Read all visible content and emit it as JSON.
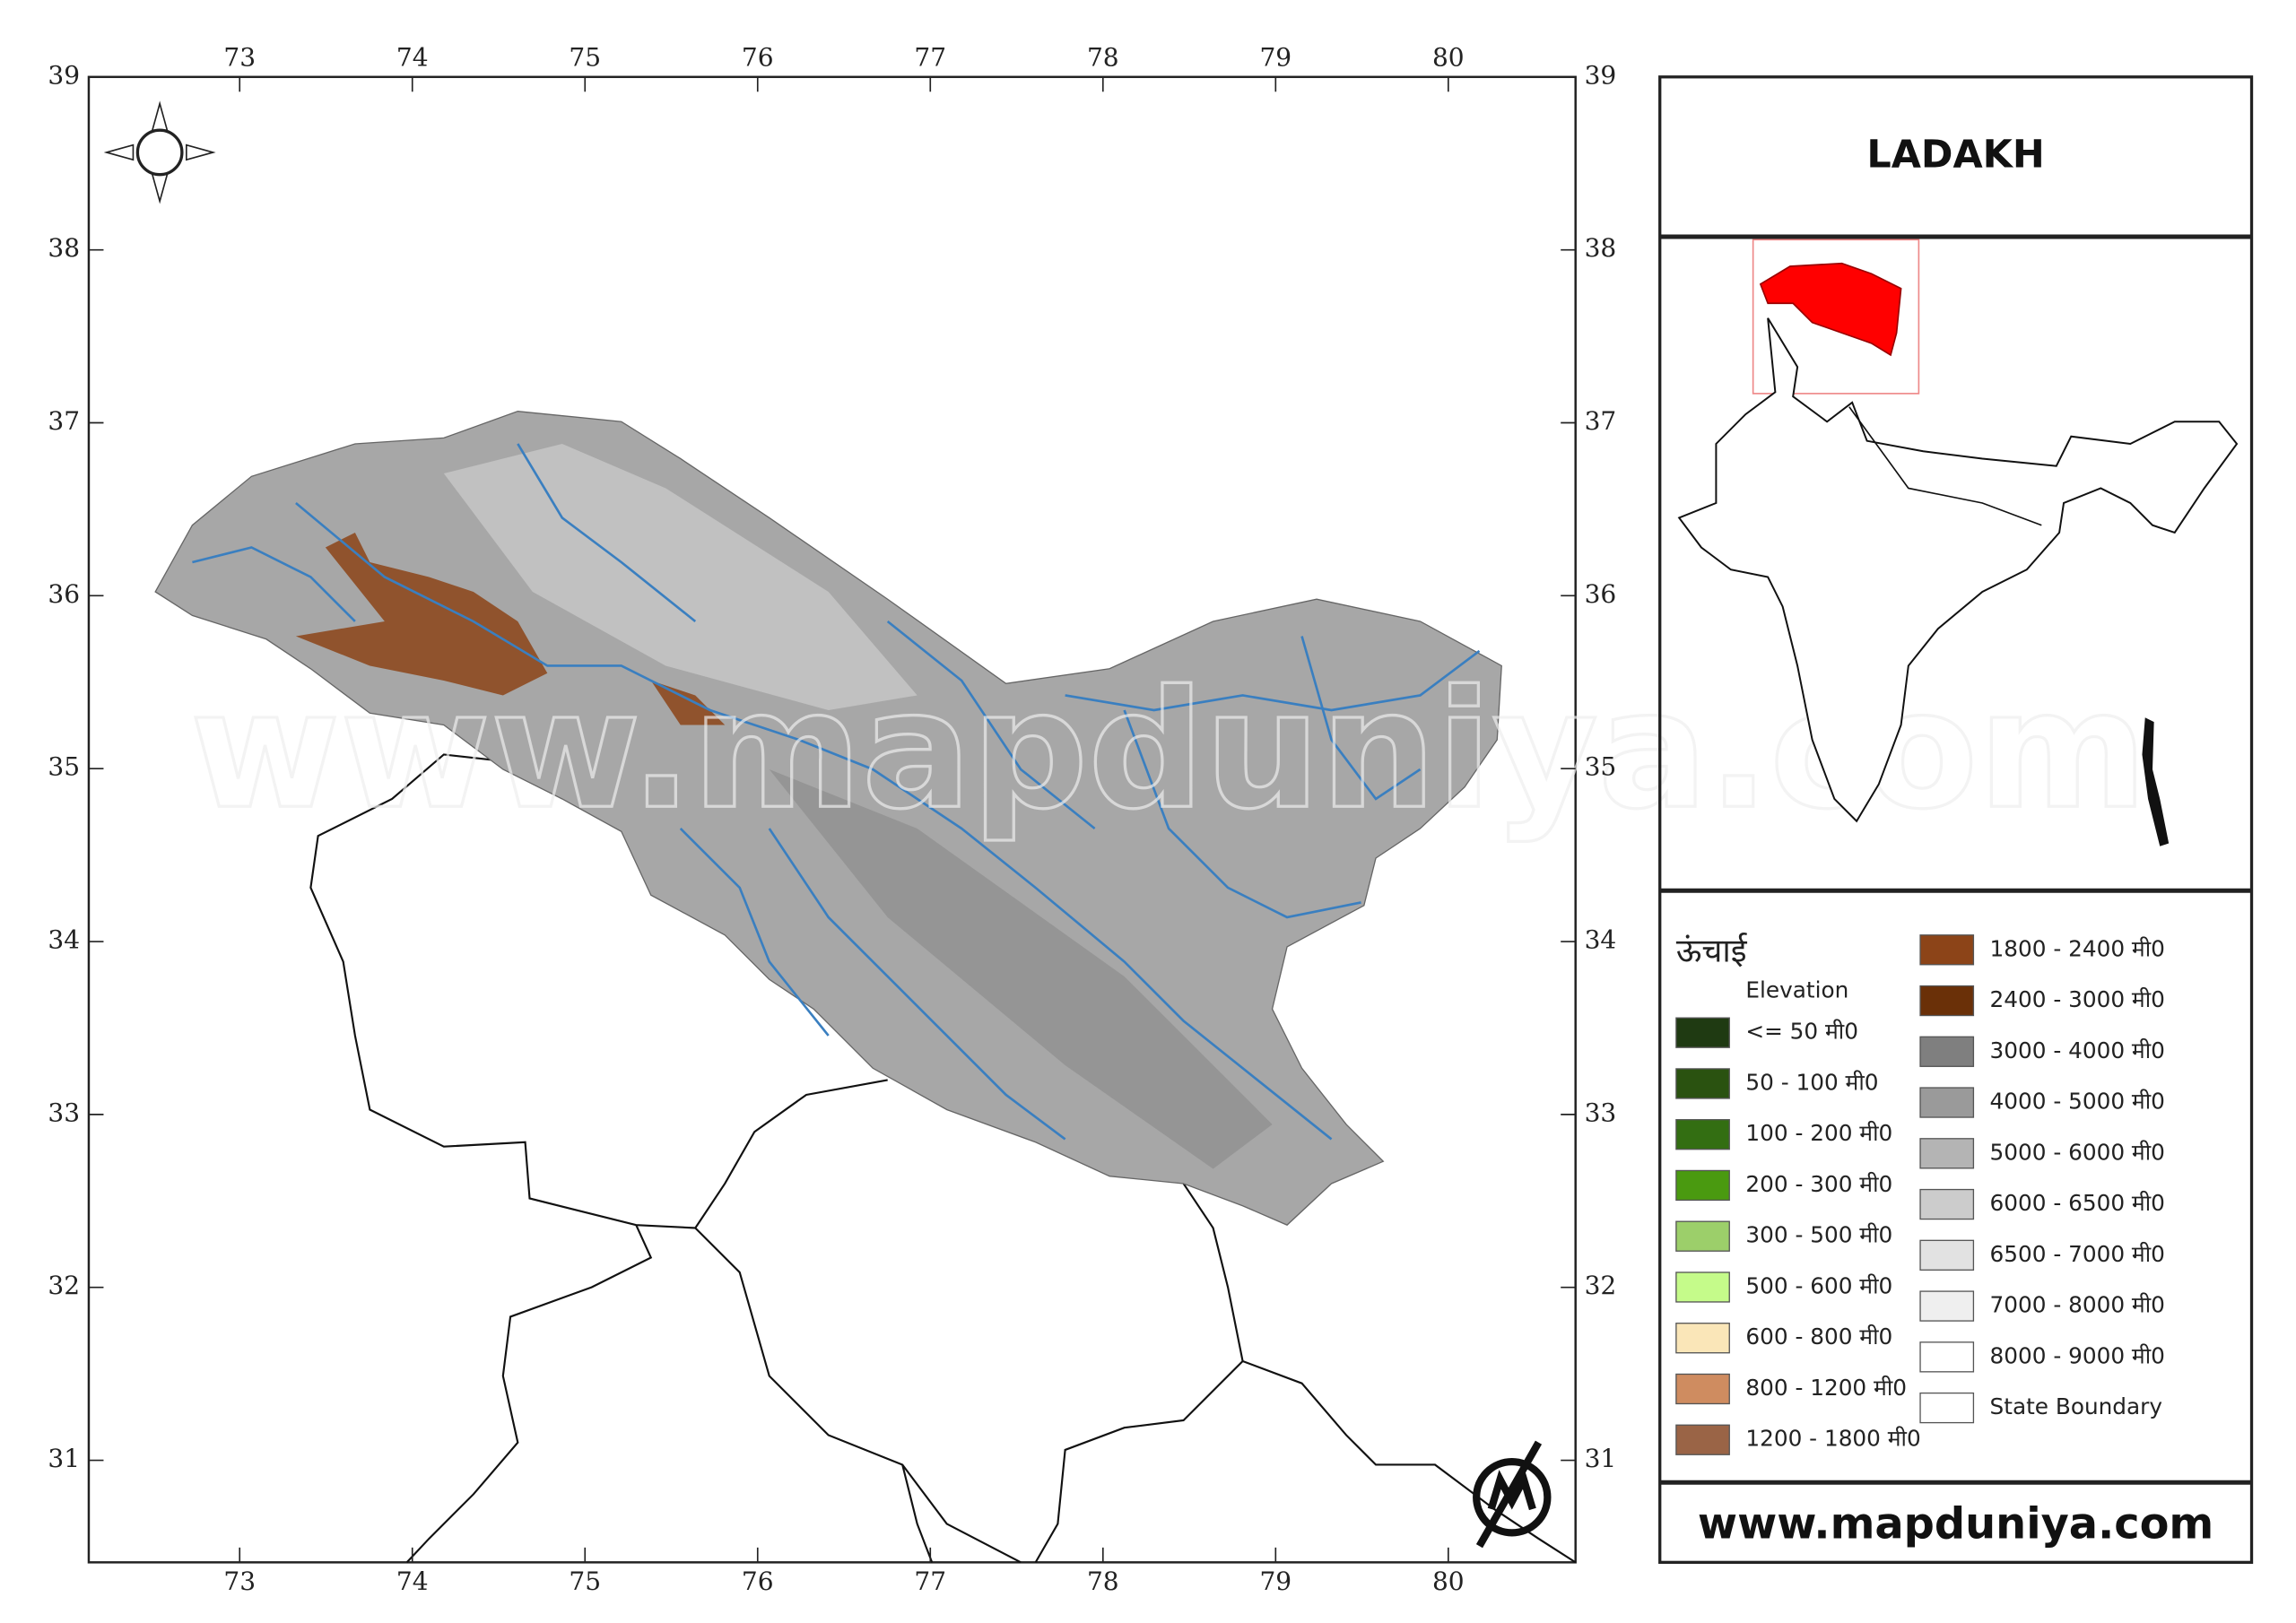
{
  "title": "LADAKH",
  "website": "www.mapduniya.com",
  "map": {
    "xlim": [
      72.126,
      80.737
    ],
    "ylim": [
      30.41,
      39.0
    ],
    "xticks": [
      73,
      74,
      75,
      76,
      77,
      78,
      79,
      80
    ],
    "yticks": [
      31,
      32,
      33,
      34,
      35,
      36,
      37,
      38,
      39
    ]
  },
  "legend": {
    "title": "ऊंचाई",
    "subtitle": "Elevation",
    "items": [
      {
        "label": "<= 50 मी0",
        "color": "#1f3a12"
      },
      {
        "label": "50 - 100 मी0",
        "color": "#2a5210"
      },
      {
        "label": "100 - 200 मी0",
        "color": "#336e12"
      },
      {
        "label": "200 - 300 मी0",
        "color": "#4a9a10"
      },
      {
        "label": "300 - 500 मी0",
        "color": "#9ccf6a"
      },
      {
        "label": "500 - 600 मी0",
        "color": "#c5fb8a"
      },
      {
        "label": "600 - 800 मी0",
        "color": "#fae6b8"
      },
      {
        "label": "800 - 1200 मी0",
        "color": "#cf8c60"
      },
      {
        "label": "1200 - 1800 मी0",
        "color": "#9a6446"
      },
      {
        "label": "1800 - 2400 मी0",
        "color": "#8c4418"
      },
      {
        "label": "2400 - 3000 मी0",
        "color": "#6a3008"
      },
      {
        "label": "3000 - 4000 मी0",
        "color": "#7f7f7f"
      },
      {
        "label": "4000 - 5000 मी0",
        "color": "#9a9a9a"
      },
      {
        "label": "5000 - 6000 मी0",
        "color": "#b4b4b4"
      },
      {
        "label": "6000 - 6500 मी0",
        "color": "#cccccc"
      },
      {
        "label": "6500 - 7000 मी0",
        "color": "#e2e2e2"
      },
      {
        "label": "7000 - 8000 मी0",
        "color": "#efefef"
      },
      {
        "label": "8000 - 9000 मी0",
        "color": "#ffffff"
      },
      {
        "label": "State Boundary",
        "color": "#ffffff"
      }
    ]
  }
}
